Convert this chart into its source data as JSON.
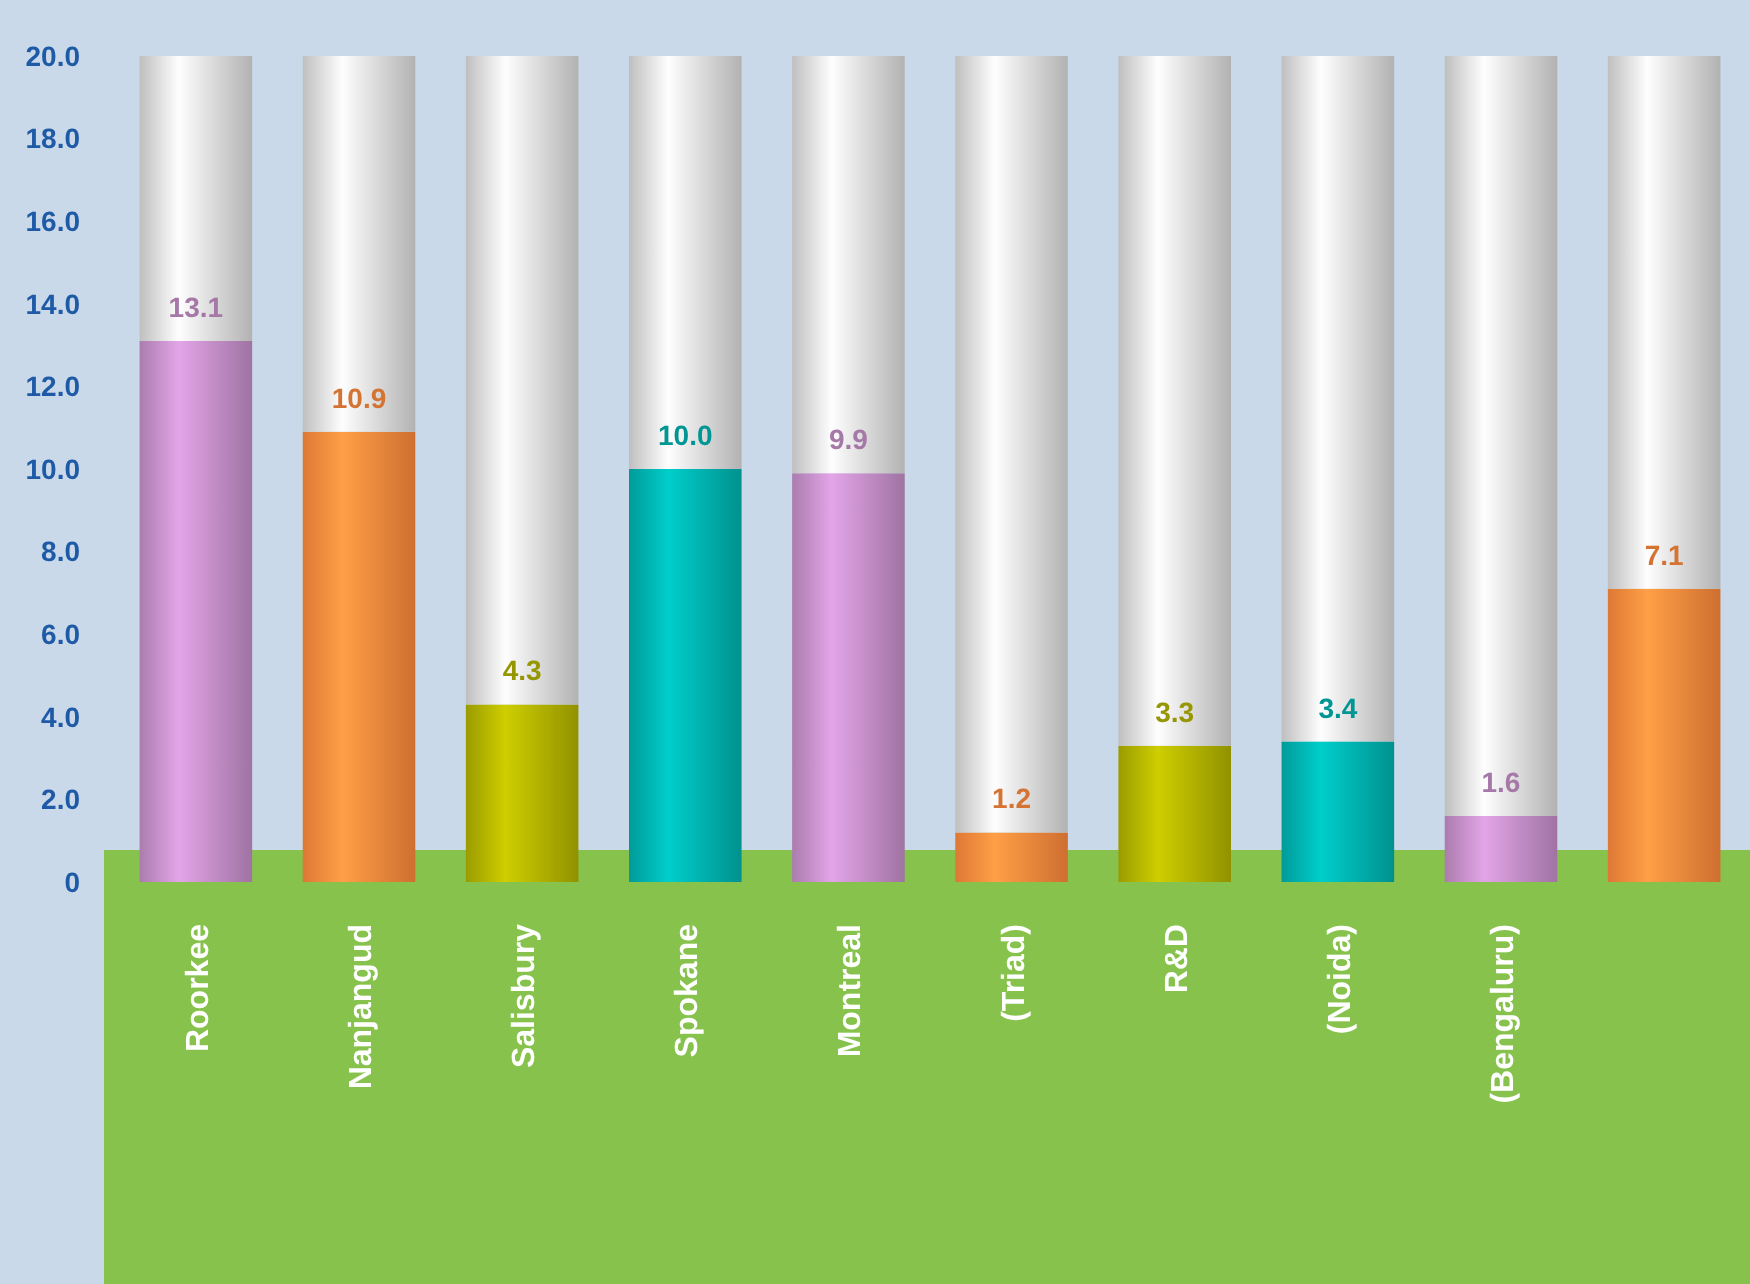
{
  "chart_data": {
    "type": "bar",
    "stacked": true,
    "categories": [
      "Roorkee",
      "Nanjangud",
      "Salisbury",
      "Spokane",
      "Montreal",
      "(Triad)",
      "R&D",
      "(Noida)",
      "(Bengaluru)",
      null
    ],
    "series": [
      {
        "colors": [
          "#c58fc9",
          "#ff8a3d",
          "#b3b300",
          "#00b3b0",
          "#c58fc9",
          "#ff8a3d",
          "#b3b300",
          "#00b3b0",
          "#c58fc9",
          "#ff8a3d"
        ],
        "values": [
          13.1,
          10.9,
          4.3,
          10.0,
          9.9,
          1.2,
          3.3,
          3.4,
          1.6,
          7.1
        ],
        "value_labels": [
          "13.1",
          "10.9",
          "4.3",
          "10.0",
          "9.9",
          "1.2",
          "3.3",
          "3.4",
          "1.6",
          "7.1"
        ]
      },
      {
        "color": "#dcdcdc",
        "values": [
          6.9,
          9.1,
          15.7,
          10.0,
          10.1,
          18.8,
          16.7,
          16.6,
          18.4,
          12.9
        ]
      }
    ],
    "ylim": [
      0,
      20
    ],
    "yticks": [
      0,
      {
        "value": 2,
        "label": "2.0"
      },
      {
        "value": 4,
        "label": "4.0"
      },
      {
        "value": 6,
        "label": "6.0"
      },
      {
        "value": 8,
        "label": "8.0"
      },
      {
        "value": 10,
        "label": "10.0"
      },
      {
        "value": 12,
        "label": "12.0"
      },
      {
        "value": 14,
        "label": "14.0"
      },
      {
        "value": 16,
        "label": "16.0"
      },
      {
        "value": 18,
        "label": "18.0"
      },
      {
        "value": 20,
        "label": "20.0"
      }
    ]
  }
}
